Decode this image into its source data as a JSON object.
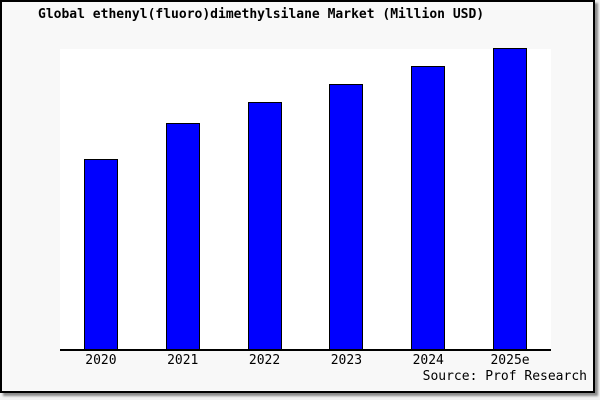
{
  "chart_data": {
    "type": "bar",
    "title": "Global ethenyl(fluoro)dimethylsilane Market (Million USD)",
    "categories": [
      "2020",
      "2021",
      "2022",
      "2023",
      "2024",
      "2025e"
    ],
    "values": [
      63,
      75,
      82,
      88,
      94,
      100
    ],
    "values_note": "relative bar heights, max bar = 100; y-axis has no ticks or labels in the image",
    "xlabel": "",
    "ylabel": "",
    "grid": false,
    "legend": false,
    "y_axis_visible": false,
    "bar_fill_color": "#0000ff",
    "bar_border_color": "#000000",
    "plot_background": "#ffffff",
    "figure_background": "#f8f8f8",
    "axis_line_color": "#000000",
    "source": "Source: Prof Research"
  }
}
